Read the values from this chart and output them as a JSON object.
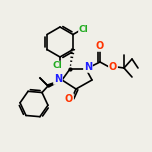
{
  "bg_color": "#f0efe8",
  "bond_color": "#000000",
  "bond_width": 1.2,
  "atom_colors": {
    "N": "#2020ff",
    "O": "#ff3300",
    "Cl": "#20aa20"
  },
  "scale": 1.0
}
